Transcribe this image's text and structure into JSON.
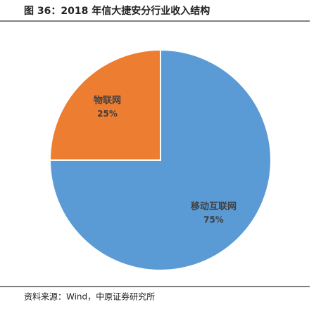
{
  "chart_data": {
    "type": "pie",
    "title": "图 36：2018 年信大捷安分行业收入结构",
    "categories": [
      "移动互联网",
      "物联网"
    ],
    "values": [
      75,
      25
    ],
    "value_labels": [
      "75%",
      "25%"
    ],
    "colors": [
      "#5b9bd5",
      "#ed7d31"
    ],
    "source": "资料来源：Wind，中原证券研究所"
  }
}
